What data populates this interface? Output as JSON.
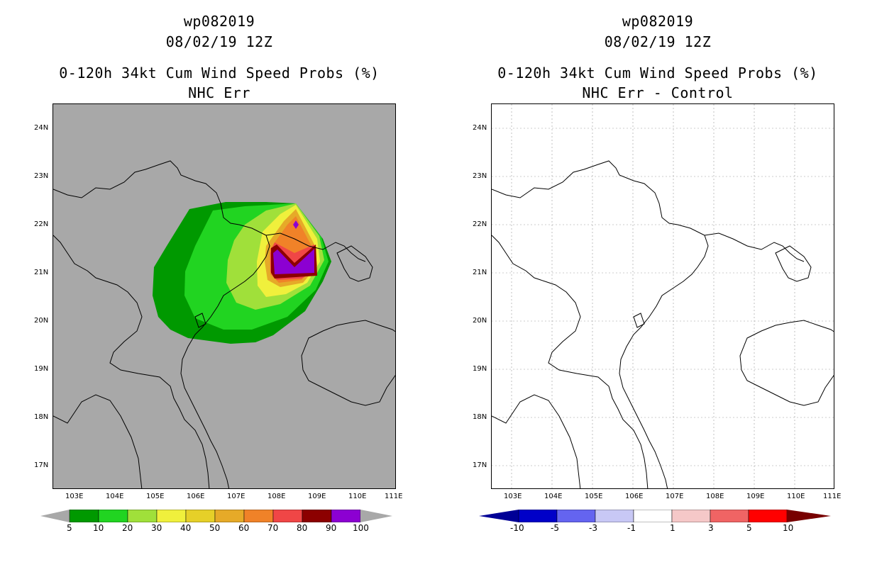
{
  "left_panel": {
    "storm_id": "wp082019",
    "datetime": "08/02/19 12Z",
    "product": "0-120h 34kt Cum Wind Speed Probs (%)",
    "subtitle": "NHC Err",
    "colorbar": {
      "labels": [
        "5",
        "10",
        "20",
        "30",
        "40",
        "50",
        "60",
        "70",
        "80",
        "90",
        "100"
      ],
      "colors": [
        "#009900",
        "#21d421",
        "#a0e03a",
        "#f0f03c",
        "#e6d028",
        "#e6aa28",
        "#f08228",
        "#f04646",
        "#8c0000",
        "#8c00d2"
      ],
      "under_color": "#a8a8a8",
      "over_color": "#a8a8a8"
    }
  },
  "right_panel": {
    "storm_id": "wp082019",
    "datetime": "08/02/19 12Z",
    "product": "0-120h 34kt Cum Wind Speed Probs (%)",
    "subtitle": "NHC Err - Control",
    "colorbar": {
      "labels": [
        "-10",
        "-5",
        "-3",
        "-1",
        "1",
        "3",
        "5",
        "10"
      ],
      "colors": [
        "#0000c8",
        "#6464f0",
        "#c8c8f5",
        "#ffffff",
        "#f5c8c8",
        "#f06464",
        "#ff0000"
      ],
      "under_color": "#000096",
      "over_color": "#780000"
    }
  },
  "axes": {
    "lat_labels": [
      "24N",
      "23N",
      "22N",
      "21N",
      "20N",
      "19N",
      "18N",
      "17N"
    ],
    "lon_labels": [
      "103E",
      "104E",
      "105E",
      "106E",
      "107E",
      "108E",
      "109E",
      "110E",
      "111E"
    ],
    "lat_range": [
      16.5,
      24.5
    ],
    "lon_range": [
      102.5,
      111.0
    ]
  },
  "map_colors": {
    "left_background": "#a8a8a8",
    "right_background": "#ffffff",
    "coastline": "#000000",
    "grid": "#999999"
  }
}
